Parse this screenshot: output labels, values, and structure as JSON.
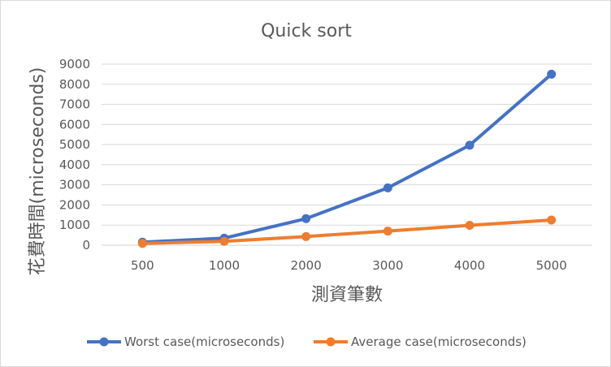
{
  "chart_data": {
    "type": "line",
    "title": "Quick sort",
    "xlabel": "測資筆數",
    "ylabel": "花費時間(microseconds)",
    "categories": [
      "500",
      "1000",
      "2000",
      "3000",
      "4000",
      "5000"
    ],
    "ylim": [
      0,
      9000
    ],
    "yticks": [
      0,
      1000,
      2000,
      3000,
      4000,
      5000,
      6000,
      7000,
      8000,
      9000
    ],
    "grid": true,
    "legend_position": "bottom",
    "series": [
      {
        "name": "Worst case(microseconds)",
        "color": "#4472c4",
        "values": [
          150,
          350,
          1320,
          2850,
          4970,
          8500
        ]
      },
      {
        "name": "Average case(microseconds)",
        "color": "#ed7d31",
        "values": [
          90,
          190,
          430,
          700,
          990,
          1250
        ]
      }
    ]
  }
}
